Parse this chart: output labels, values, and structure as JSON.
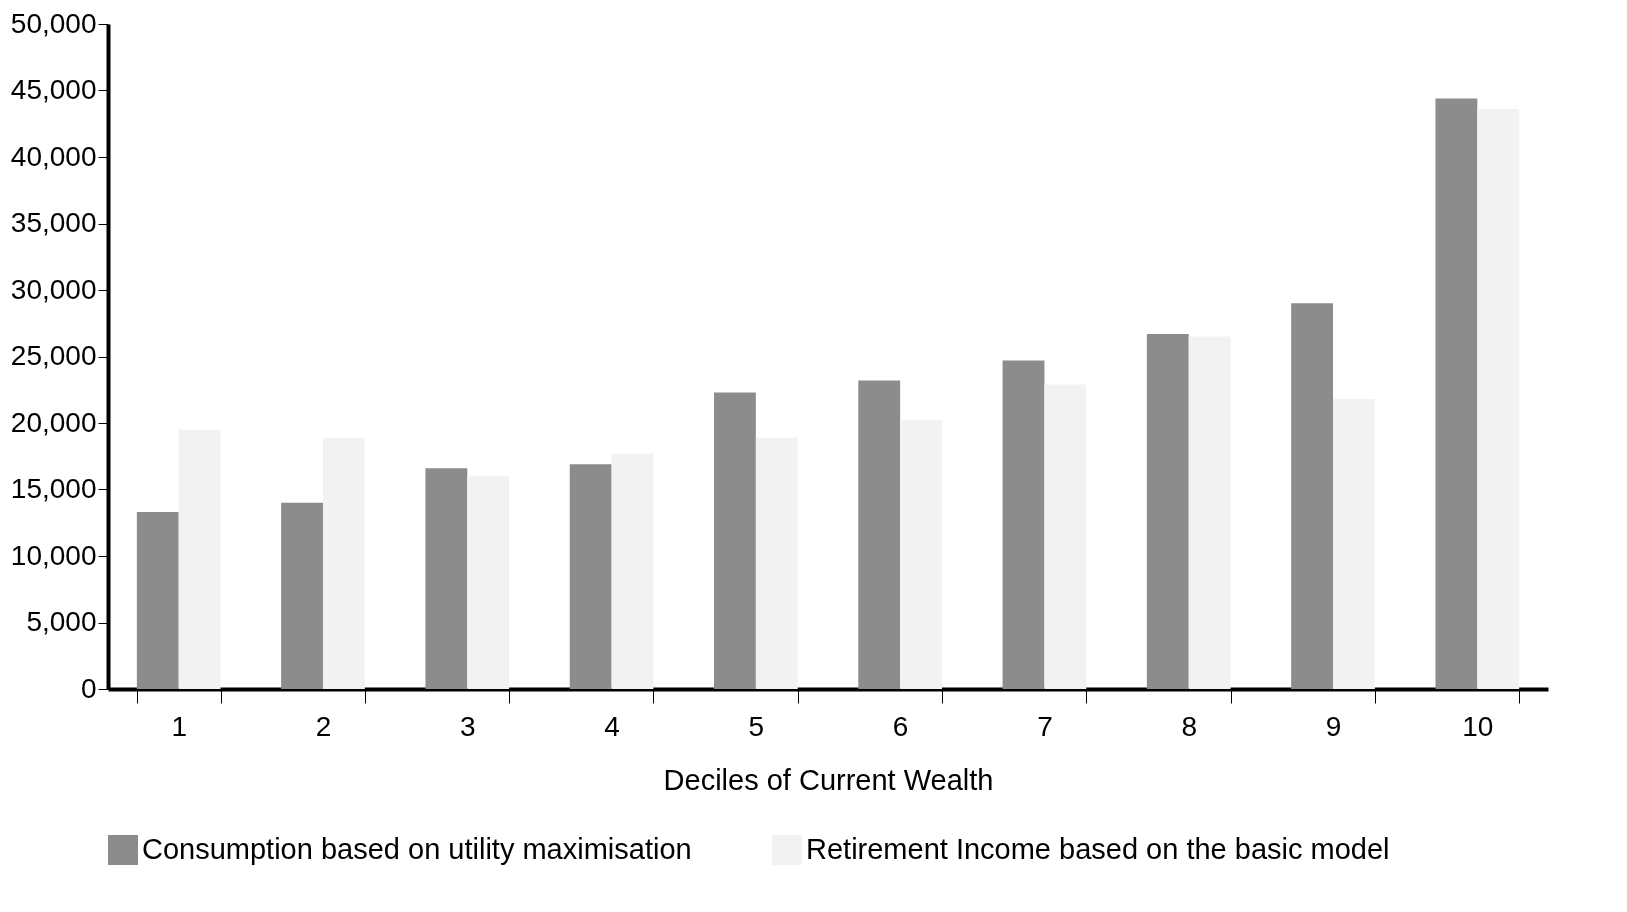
{
  "chart_data": {
    "type": "bar",
    "xlabel": "Deciles of Current Wealth",
    "categories": [
      "1",
      "2",
      "3",
      "4",
      "5",
      "6",
      "7",
      "8",
      "9",
      "10"
    ],
    "series": [
      {
        "name": "Consumption based on utility maximisation",
        "color": "#8c8c8c",
        "values": [
          13300,
          14000,
          16600,
          16900,
          22300,
          23200,
          24700,
          26700,
          29000,
          44400
        ]
      },
      {
        "name": "Retirement Income based on the basic model",
        "color": "#f2f2f2",
        "values": [
          19500,
          18900,
          16000,
          17700,
          18900,
          20200,
          22900,
          26500,
          21800,
          43600
        ]
      }
    ],
    "ylim": [
      0,
      50000
    ],
    "yticks": [
      0,
      {
        "value": 5000,
        "label": "5,000"
      },
      {
        "value": 10000,
        "label": "10,000"
      },
      {
        "value": 15000,
        "label": "15,000"
      },
      {
        "value": 20000,
        "label": "20,000"
      },
      {
        "value": 25000,
        "label": "25,000"
      },
      {
        "value": 30000,
        "label": "30,000"
      },
      {
        "value": 35000,
        "label": "35,000"
      },
      {
        "value": 40000,
        "label": "40,000"
      },
      {
        "value": 45000,
        "label": "45,000"
      },
      {
        "value": 50000,
        "label": "50,000"
      }
    ],
    "grid": false,
    "legend": "bottom"
  }
}
